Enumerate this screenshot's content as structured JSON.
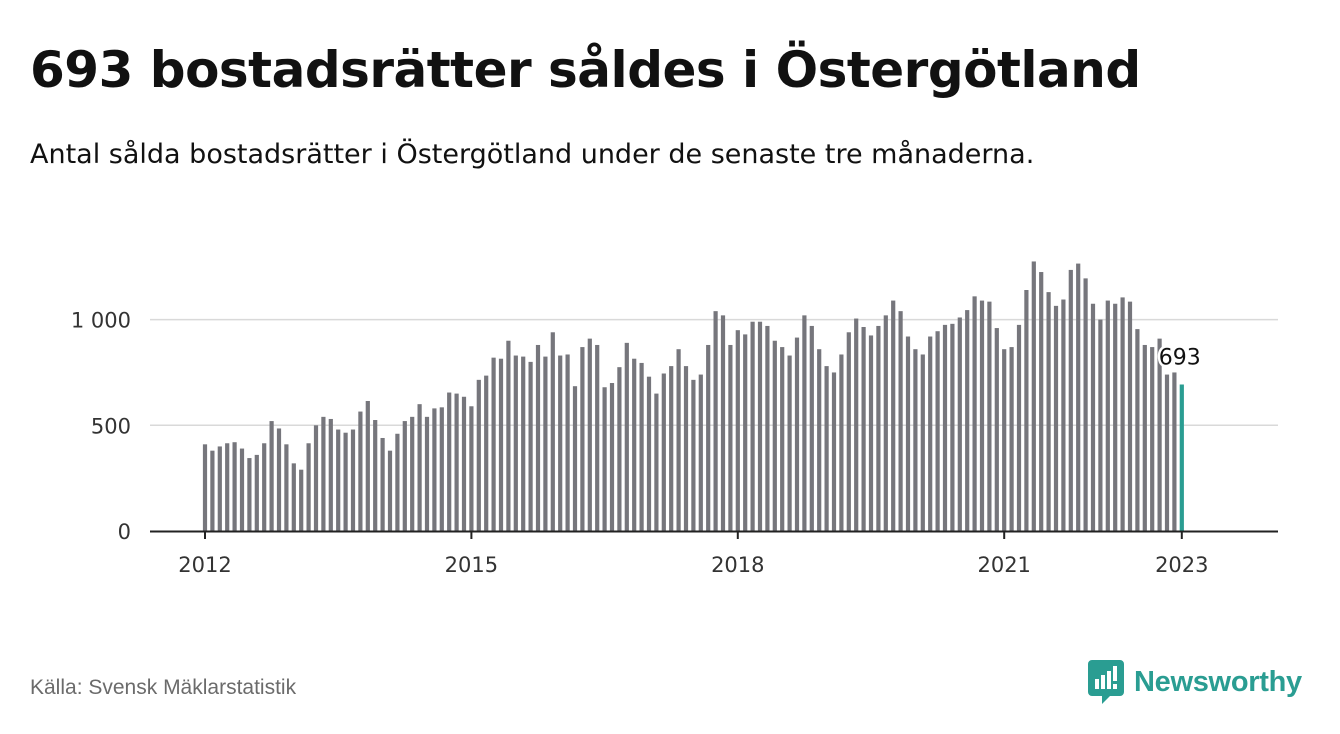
{
  "title": "693 bostadsrätter såldes i Östergötland",
  "subtitle": "Antal sålda bostadsrätter i Östergötland under de senaste tre månaderna.",
  "source": "Källa: Svensk Mäklarstatistik",
  "brand": {
    "name": "Newsworthy",
    "icon": "newsworthy-logo-icon"
  },
  "colors": {
    "bar": "#76767c",
    "highlight": "#2a9d92",
    "grid": "#d9d9d9",
    "axis": "#222222",
    "text": "#333333",
    "brand": "#2a9d92"
  },
  "chart_data": {
    "type": "bar",
    "x_start": "2012-01",
    "x_step": "month",
    "values": [
      410,
      380,
      400,
      415,
      420,
      390,
      345,
      360,
      415,
      520,
      485,
      410,
      320,
      290,
      415,
      500,
      540,
      530,
      480,
      465,
      480,
      565,
      615,
      525,
      440,
      380,
      460,
      520,
      540,
      600,
      540,
      580,
      585,
      655,
      650,
      635,
      590,
      715,
      735,
      820,
      815,
      900,
      830,
      825,
      800,
      880,
      825,
      940,
      830,
      835,
      685,
      870,
      910,
      880,
      680,
      700,
      775,
      890,
      815,
      795,
      730,
      650,
      745,
      780,
      860,
      780,
      715,
      740,
      880,
      1040,
      1020,
      880,
      950,
      930,
      990,
      990,
      970,
      900,
      870,
      830,
      915,
      1020,
      970,
      860,
      780,
      750,
      835,
      940,
      1005,
      965,
      925,
      970,
      1020,
      1090,
      1040,
      920,
      860,
      835,
      920,
      945,
      975,
      980,
      1010,
      1045,
      1110,
      1090,
      1085,
      960,
      860,
      870,
      975,
      1140,
      1275,
      1225,
      1130,
      1065,
      1095,
      1235,
      1265,
      1195,
      1075,
      1000,
      1090,
      1075,
      1105,
      1085,
      955,
      880,
      870,
      910,
      740,
      750,
      693
    ],
    "x_ticks": [
      "2012",
      "2015",
      "2018",
      "2021",
      "2023"
    ],
    "y_ticks": [
      "0",
      "500",
      "1 000"
    ],
    "ylim": [
      0,
      1300
    ],
    "highlight_label": "693",
    "grid": true
  }
}
